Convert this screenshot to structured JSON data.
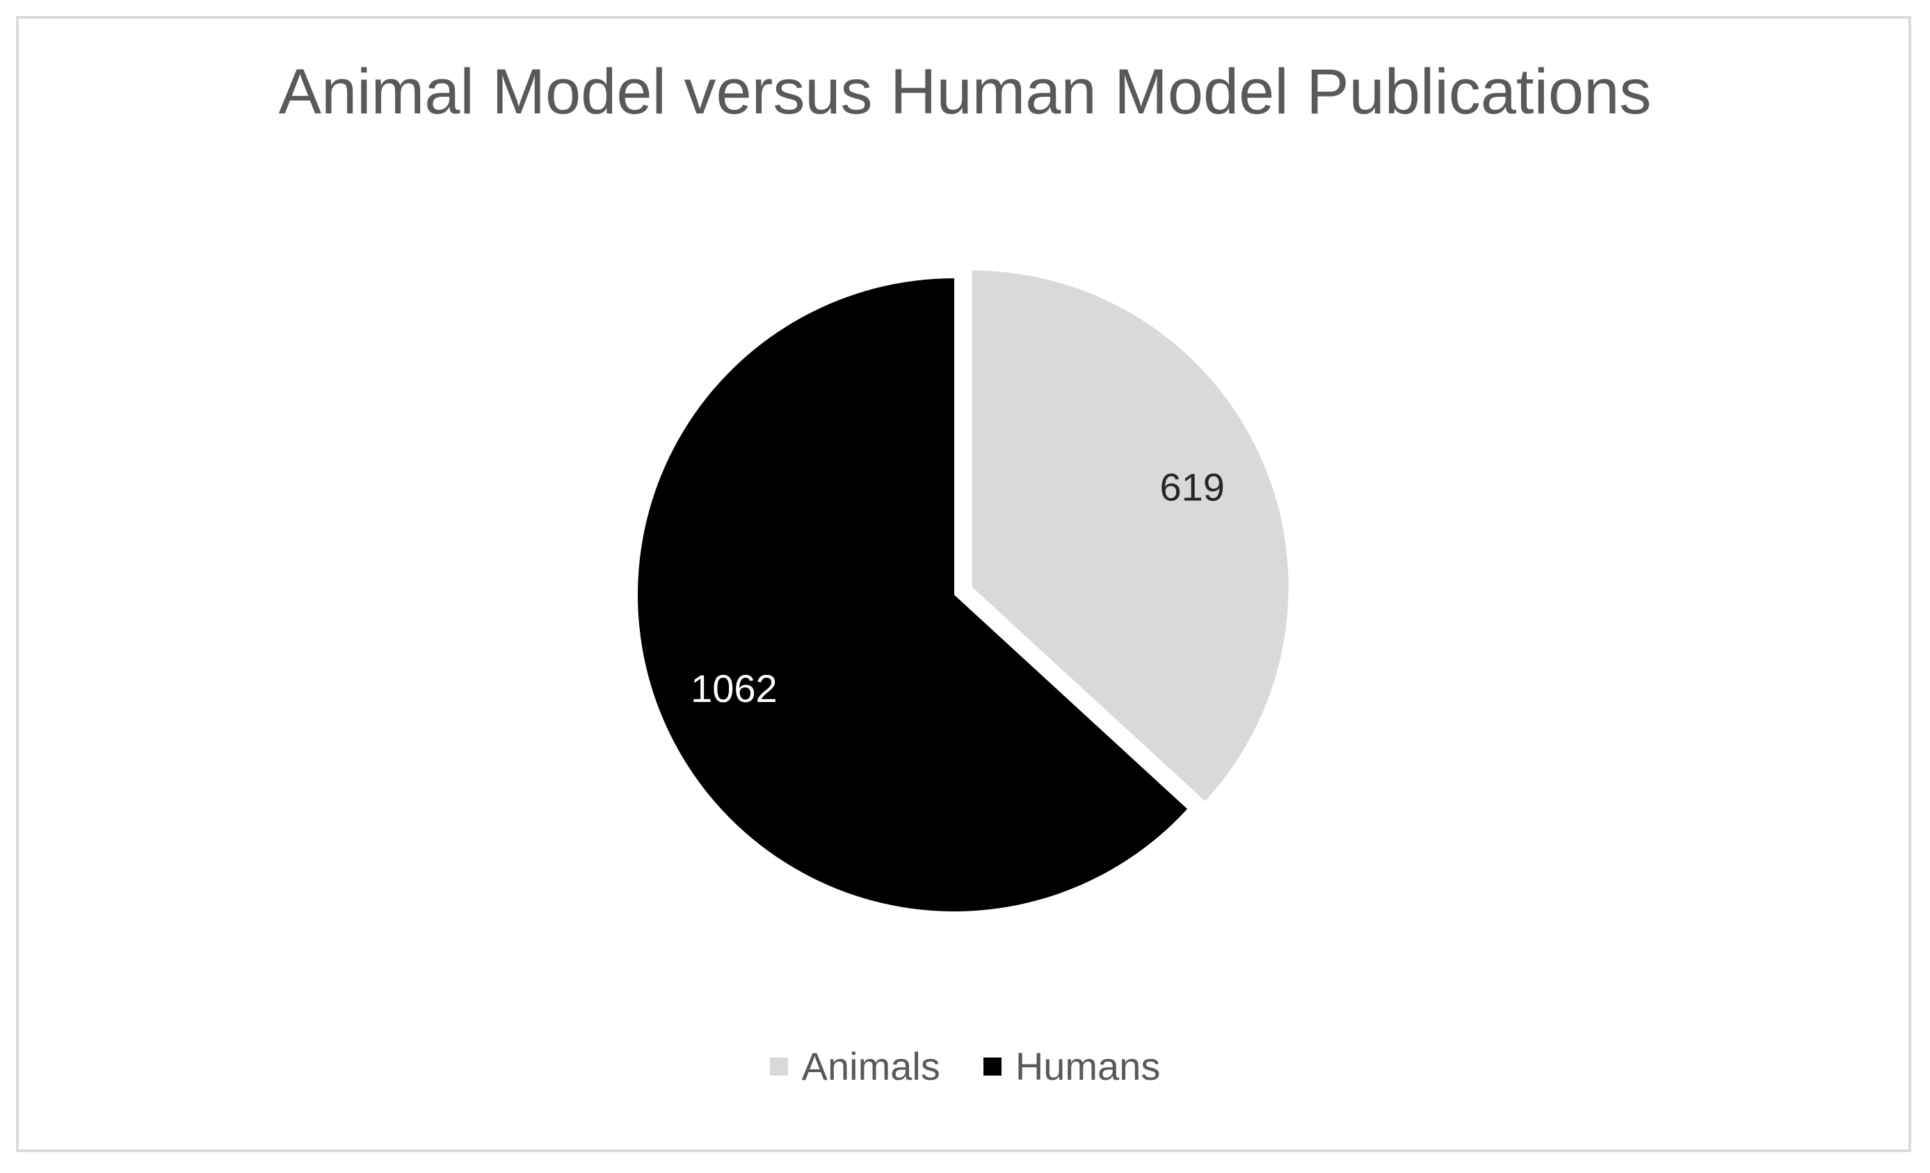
{
  "chart_data": {
    "type": "pie",
    "title": "Animal Model versus Human Model Publications",
    "categories": [
      "Animals",
      "Humans"
    ],
    "values": [
      619,
      1062
    ],
    "data_labels": [
      "619",
      "1062"
    ],
    "colors": [
      "#d9d9d9",
      "#000000"
    ],
    "label_colors": [
      "#262626",
      "#ffffff"
    ],
    "legend_position": "bottom",
    "exploded_slice": "Animals"
  }
}
